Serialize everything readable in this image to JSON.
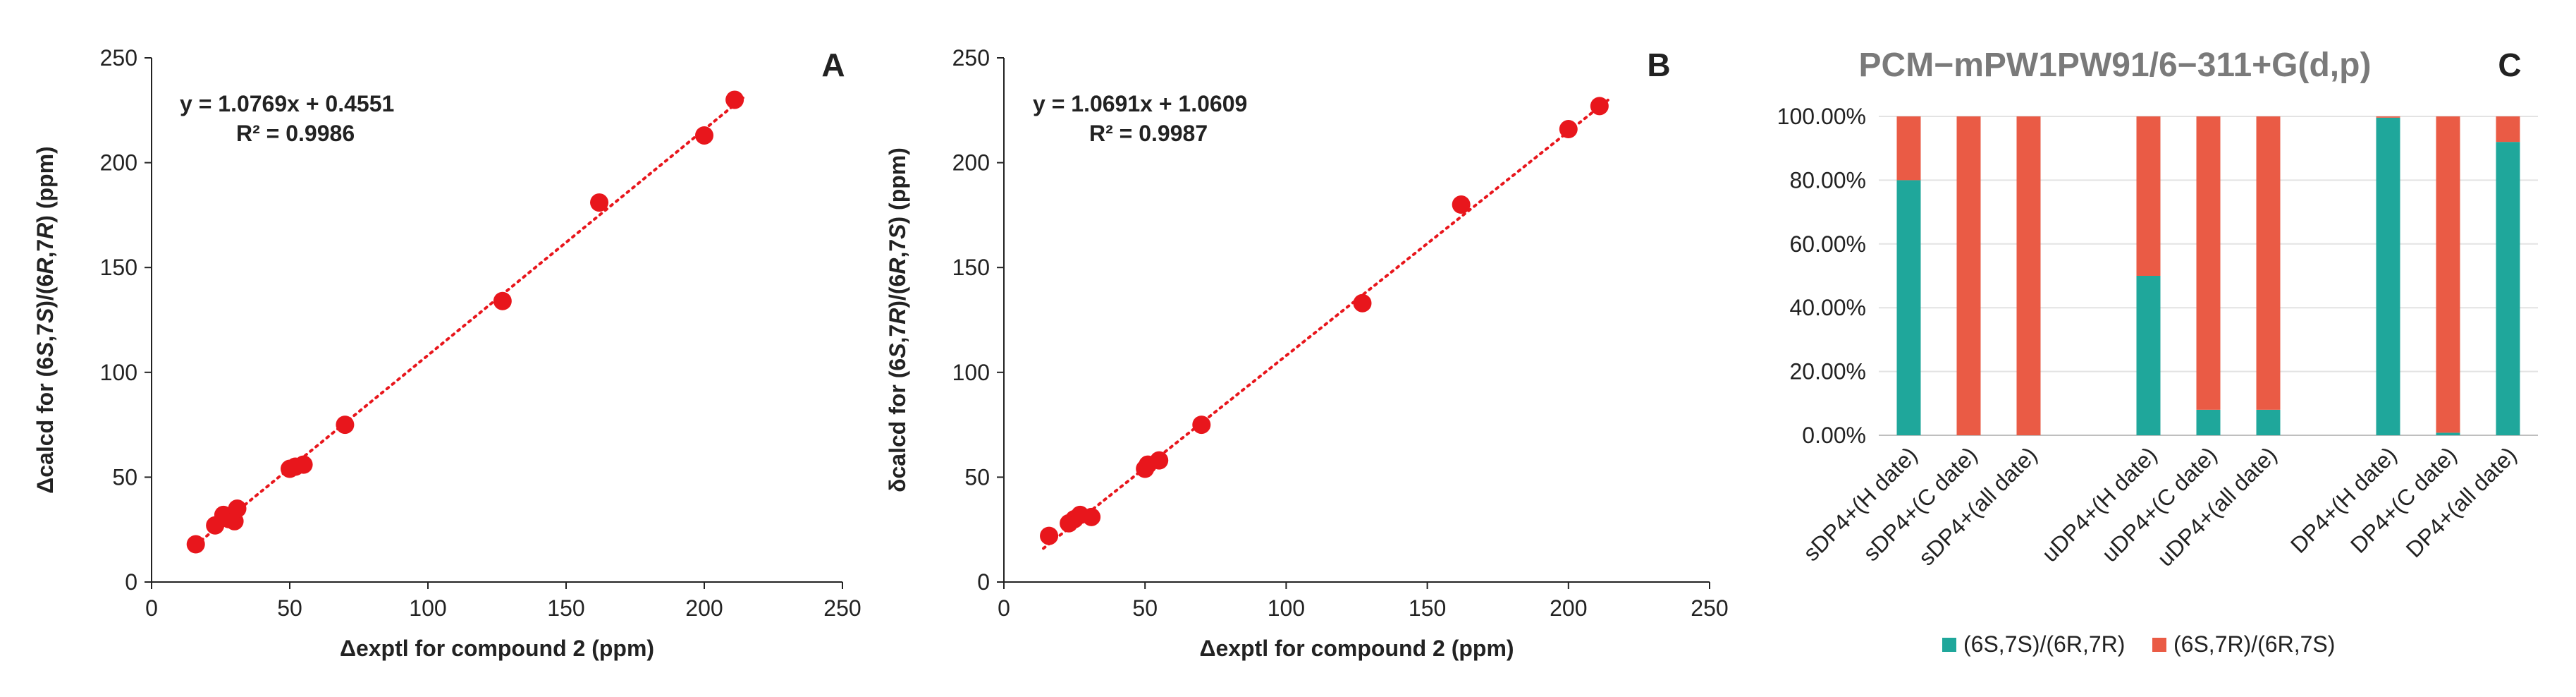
{
  "figure": {
    "colors": {
      "scatter_point": "#e8161c",
      "fit_line": "#e8161c",
      "bar_series_1": "#1fa79b",
      "bar_series_2": "#ea5b45",
      "axis": "#222222",
      "grid": "#e3e3e3",
      "title_gray": "#7a7a7a"
    }
  },
  "chart_data": [
    {
      "type": "scatter",
      "panel_label": "A",
      "xlabel": "Δexptl for compound 2 (ppm)",
      "ylabel_parts": [
        {
          "t": "Δcalcd for (6",
          "i": false
        },
        {
          "t": "S",
          "i": true
        },
        {
          "t": ",7",
          "i": false
        },
        {
          "t": "S",
          "i": true
        },
        {
          "t": ")/(6",
          "i": false
        },
        {
          "t": "R",
          "i": true
        },
        {
          "t": ",7",
          "i": false
        },
        {
          "t": "R",
          "i": true
        },
        {
          "t": ") (ppm)",
          "i": false
        }
      ],
      "xlim": [
        0,
        250
      ],
      "ylim": [
        0,
        250
      ],
      "xticks": [
        0,
        50,
        100,
        150,
        200,
        250
      ],
      "yticks": [
        0,
        50,
        100,
        150,
        200,
        250
      ],
      "grid": false,
      "equation": "y = 1.0769x + 0.4551",
      "r2": "R² = 0.9986",
      "fit": {
        "slope": 1.0769,
        "intercept": 0.4551
      },
      "points": [
        [
          16,
          18
        ],
        [
          23,
          27
        ],
        [
          26,
          32
        ],
        [
          28,
          30
        ],
        [
          30,
          29
        ],
        [
          31,
          35
        ],
        [
          50,
          54
        ],
        [
          52,
          55
        ],
        [
          55,
          56
        ],
        [
          70,
          75
        ],
        [
          127,
          134
        ],
        [
          162,
          181
        ],
        [
          200,
          213
        ],
        [
          211,
          230
        ]
      ]
    },
    {
      "type": "scatter",
      "panel_label": "B",
      "xlabel": "Δexptl for compound 2 (ppm)",
      "ylabel_parts": [
        {
          "t": "δcalcd for (6",
          "i": false
        },
        {
          "t": "S",
          "i": true
        },
        {
          "t": ",7",
          "i": false
        },
        {
          "t": "R",
          "i": true
        },
        {
          "t": ")/(6",
          "i": false
        },
        {
          "t": "R",
          "i": true
        },
        {
          "t": ",7",
          "i": false
        },
        {
          "t": "S",
          "i": true
        },
        {
          "t": ") (ppm)",
          "i": false
        }
      ],
      "xlim": [
        0,
        250
      ],
      "ylim": [
        0,
        250
      ],
      "xticks": [
        0,
        50,
        100,
        150,
        200,
        250
      ],
      "yticks": [
        0,
        50,
        100,
        150,
        200,
        250
      ],
      "grid": false,
      "equation": "y = 1.0691x + 1.0609",
      "r2": "R² = 0.9987",
      "fit": {
        "slope": 1.0691,
        "intercept": 1.0609
      },
      "points": [
        [
          16,
          22
        ],
        [
          23,
          28
        ],
        [
          25,
          30
        ],
        [
          27,
          32
        ],
        [
          31,
          31
        ],
        [
          50,
          54
        ],
        [
          51,
          56
        ],
        [
          55,
          58
        ],
        [
          70,
          75
        ],
        [
          127,
          133
        ],
        [
          162,
          180
        ],
        [
          200,
          216
        ],
        [
          211,
          227
        ]
      ]
    },
    {
      "type": "bar",
      "stacked": true,
      "panel_label": "C",
      "title": "PCM−mPW1PW91/6−311+G(d,p)",
      "ylim": [
        0,
        100
      ],
      "yticks": [
        "0.00%",
        "20.00%",
        "40.00%",
        "60.00%",
        "80.00%",
        "100.00%"
      ],
      "grid": true,
      "legend_position": "bottom",
      "groups": [
        [
          "sDP4+(H date)",
          "sDP4+(C date)",
          "sDP4+(all date)"
        ],
        [
          "uDP4+(H date)",
          "uDP4+(C date)",
          "uDP4+(all date)"
        ],
        [
          "DP4+(H date)",
          "DP4+(C date)",
          "DP4+(all date)"
        ]
      ],
      "series": [
        {
          "name": "(6S,7S)/(6R,7R)",
          "values": [
            [
              80,
              0,
              0
            ],
            [
              50,
              8,
              8
            ],
            [
              99.6,
              0.8,
              92
            ]
          ]
        },
        {
          "name": "(6S,7R)/(6R,7S)",
          "values": [
            [
              20,
              100,
              100
            ],
            [
              50,
              92,
              92
            ],
            [
              0.4,
              99.2,
              8
            ]
          ]
        }
      ]
    }
  ]
}
